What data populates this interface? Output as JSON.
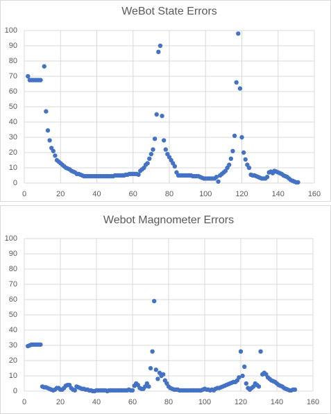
{
  "chart_data": [
    {
      "type": "scatter",
      "title": "WeBot State Errors",
      "color": "#4472c4",
      "grid": true,
      "xlim": [
        0,
        160
      ],
      "xticks": [
        0,
        20,
        40,
        60,
        80,
        100,
        120,
        140,
        160
      ],
      "ylim": [
        0,
        100
      ],
      "yticks": [
        0,
        10,
        20,
        30,
        40,
        50,
        60,
        70,
        80,
        90,
        100
      ],
      "x": [
        2,
        3,
        4,
        5,
        6,
        7,
        8,
        9,
        11,
        12,
        13,
        14,
        15,
        16,
        17,
        18,
        19,
        20,
        21,
        22,
        23,
        24,
        25,
        26,
        27,
        28,
        29,
        30,
        31,
        32,
        33,
        34,
        35,
        36,
        37,
        38,
        39,
        40,
        41,
        42,
        43,
        44,
        45,
        46,
        47,
        48,
        49,
        50,
        51,
        52,
        53,
        54,
        55,
        56,
        57,
        58,
        59,
        60,
        61,
        62,
        63,
        64,
        65,
        66,
        67,
        68,
        69,
        70,
        71,
        72,
        73,
        74,
        75,
        76,
        77,
        78,
        79,
        80,
        81,
        82,
        83,
        84,
        85,
        86,
        87,
        88,
        89,
        90,
        91,
        92,
        93,
        94,
        95,
        96,
        97,
        98,
        99,
        100,
        101,
        102,
        103,
        104,
        105,
        106,
        107,
        108,
        109,
        110,
        111,
        112,
        113,
        114,
        115,
        116,
        117,
        118,
        119,
        120,
        121,
        122,
        123,
        124,
        125,
        126,
        127,
        128,
        129,
        130,
        131,
        132,
        133,
        134,
        135,
        136,
        137,
        138,
        139,
        140,
        141,
        142,
        143,
        144,
        145,
        146,
        147,
        148,
        149,
        150,
        151
      ],
      "values": [
        70,
        67.5,
        67.5,
        67.5,
        67.5,
        67.5,
        67.5,
        67.5,
        76.5,
        47,
        34.5,
        28,
        23,
        21,
        18,
        15,
        14,
        13,
        12,
        11,
        10,
        9.5,
        9,
        8,
        7.5,
        7,
        6,
        6,
        5.5,
        5,
        4.5,
        4.5,
        4.5,
        4.5,
        4.5,
        4.5,
        4.5,
        4.5,
        4.5,
        4.5,
        4.5,
        4.5,
        4.5,
        4.5,
        4.5,
        4.5,
        4.5,
        5,
        5,
        5,
        5,
        5,
        5,
        5.5,
        5.5,
        6,
        6,
        6,
        6,
        6,
        5.5,
        8,
        9,
        10,
        12,
        13,
        16,
        19,
        22,
        29,
        45,
        86,
        90,
        44,
        28,
        22,
        19,
        17,
        15,
        13,
        11,
        7,
        5,
        5,
        5,
        5,
        5,
        5,
        5,
        5,
        4.5,
        4.5,
        4.5,
        4.5,
        4,
        3.5,
        3,
        3,
        3,
        3,
        3,
        3,
        3,
        4,
        1,
        5,
        6,
        7,
        8,
        10,
        12,
        16,
        21,
        31,
        66,
        98,
        62,
        30,
        20,
        15.5,
        12,
        10,
        5.5,
        5,
        5,
        4.5,
        4,
        3.5,
        3,
        3,
        3,
        4,
        7,
        7.5,
        6.5,
        8,
        7.5,
        7,
        6.5,
        6,
        5,
        4.5,
        4,
        3,
        2,
        1.5,
        1,
        0.5,
        0.5
      ]
    },
    {
      "type": "scatter",
      "title": "Webot Magnometer Errors",
      "color": "#4472c4",
      "grid": true,
      "xlim": [
        0,
        160
      ],
      "xticks": [
        0,
        20,
        40,
        60,
        80,
        100,
        120,
        140,
        160
      ],
      "ylim": [
        0,
        100
      ],
      "yticks": [
        0,
        10,
        20,
        30,
        40,
        50,
        60,
        70,
        80,
        90,
        100
      ],
      "x": [
        2,
        3,
        4,
        5,
        6,
        7,
        8,
        9,
        10,
        11,
        12,
        13,
        14,
        15,
        16,
        17,
        18,
        19,
        20,
        21,
        22,
        23,
        24,
        25,
        26,
        27,
        28,
        29,
        30,
        31,
        32,
        33,
        34,
        35,
        36,
        37,
        38,
        39,
        40,
        41,
        42,
        43,
        44,
        45,
        46,
        47,
        48,
        49,
        50,
        51,
        52,
        53,
        54,
        55,
        56,
        57,
        58,
        59,
        60,
        61,
        62,
        63,
        64,
        65,
        66,
        67,
        68,
        69,
        70,
        71,
        72,
        73,
        74,
        75,
        76,
        77,
        78,
        79,
        80,
        81,
        82,
        83,
        84,
        85,
        86,
        87,
        88,
        89,
        90,
        91,
        92,
        93,
        94,
        95,
        96,
        97,
        98,
        99,
        100,
        101,
        102,
        103,
        104,
        105,
        106,
        107,
        108,
        109,
        110,
        111,
        112,
        113,
        114,
        115,
        116,
        117,
        118,
        119,
        120,
        121,
        122,
        123,
        124,
        125,
        126,
        127,
        128,
        129,
        130,
        131,
        132,
        133,
        134,
        135,
        136,
        137,
        138,
        139,
        140,
        141,
        142,
        143,
        144,
        145,
        146,
        147,
        148,
        149,
        150
      ],
      "values": [
        29.5,
        30,
        30.5,
        30.5,
        30.5,
        30.5,
        30.5,
        30.5,
        3,
        2.5,
        2.5,
        2,
        1.5,
        1,
        0.5,
        1,
        2,
        2,
        1,
        1,
        2,
        3.5,
        4,
        4,
        2,
        1,
        0.5,
        3,
        2.5,
        2,
        1.5,
        1.5,
        1,
        1,
        0.5,
        0.5,
        0,
        0,
        0.5,
        0.5,
        0.5,
        0.5,
        0.5,
        0.5,
        0,
        0.5,
        0.5,
        0.5,
        0.5,
        0.5,
        0.5,
        0.5,
        0.5,
        0.5,
        0.5,
        0.5,
        1,
        0.5,
        0.5,
        3.5,
        5,
        4,
        2,
        1.5,
        1.5,
        3,
        5,
        3,
        15,
        26,
        59,
        14,
        8,
        12,
        10,
        11,
        7,
        5,
        3,
        2,
        1.5,
        1,
        1,
        1,
        0.5,
        0.5,
        0.5,
        0.5,
        0.5,
        0.5,
        0.5,
        0.5,
        0.5,
        0.5,
        0.5,
        0.5,
        0.5,
        1,
        1.5,
        1,
        1,
        0.5,
        1,
        0.5,
        1.5,
        2,
        2,
        2.5,
        3,
        3.5,
        4,
        4.5,
        5,
        5.5,
        6,
        6,
        7,
        9,
        26,
        10,
        16,
        5,
        2,
        1,
        2,
        3,
        5,
        4,
        3,
        26,
        11,
        12,
        11,
        9,
        8,
        7,
        6.5,
        6,
        5,
        4,
        3.5,
        3,
        2,
        1.5,
        1,
        0.5,
        0.5,
        1,
        1
      ]
    }
  ]
}
